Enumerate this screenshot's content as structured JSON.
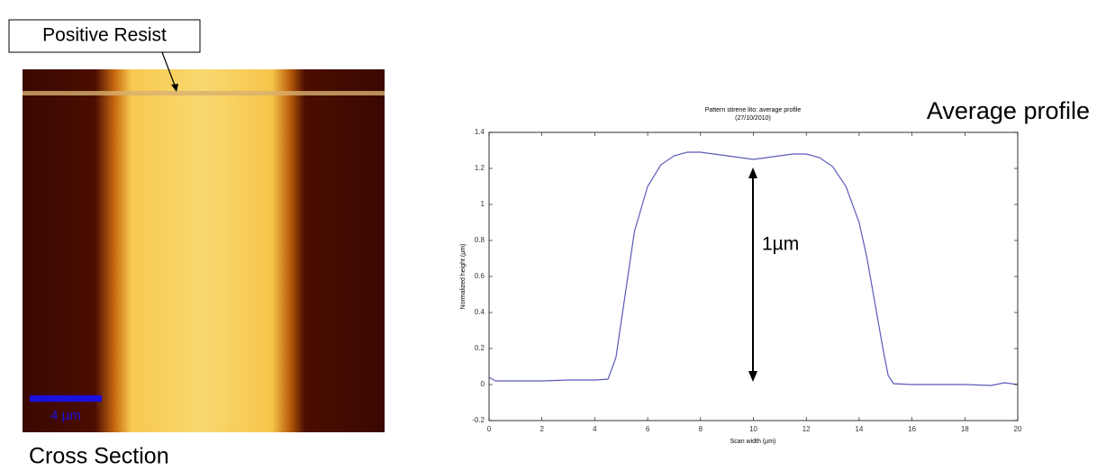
{
  "image": {
    "callout": "Positive Resist",
    "scale_bar": "4 µm",
    "caption": "Cross Section"
  },
  "heading": "Average profile",
  "chart_data": {
    "type": "line",
    "title": "Pattern stirene lito: average profile",
    "subtitle": "(27/10/2010)",
    "x_label": "Scan width (µm)",
    "y_label": "Normalized height (µm)",
    "annotation": "1µm",
    "color": "#5b5bb8",
    "x": [
      0,
      0.25,
      0.5,
      1,
      2,
      3,
      4,
      4.5,
      4.8,
      5,
      5.3,
      5.5,
      5.8,
      6,
      6.5,
      7,
      7.5,
      8,
      8.5,
      9,
      9.5,
      10,
      10.5,
      11,
      11.5,
      12,
      12.5,
      13,
      13.5,
      14,
      14.3,
      14.6,
      14.9,
      15.1,
      15.3,
      16,
      17,
      18,
      19,
      19.5,
      20
    ],
    "values": [
      0.04,
      0.02,
      0.02,
      0.02,
      0.02,
      0.025,
      0.025,
      0.03,
      0.15,
      0.35,
      0.65,
      0.85,
      1.0,
      1.1,
      1.22,
      1.27,
      1.29,
      1.29,
      1.28,
      1.27,
      1.26,
      1.25,
      1.26,
      1.27,
      1.28,
      1.28,
      1.26,
      1.21,
      1.1,
      0.9,
      0.7,
      0.45,
      0.2,
      0.05,
      0.005,
      0,
      0,
      0,
      -0.005,
      0.01,
      0
    ],
    "xlim": [
      0,
      20
    ],
    "xticks": [
      0,
      2,
      4,
      6,
      8,
      10,
      12,
      14,
      16,
      18,
      20
    ],
    "ylim": [
      -0.2,
      1.4
    ],
    "yticks": [
      -0.2,
      0,
      0.2,
      0.4,
      0.6,
      0.8,
      1,
      1.2,
      1.4
    ]
  }
}
